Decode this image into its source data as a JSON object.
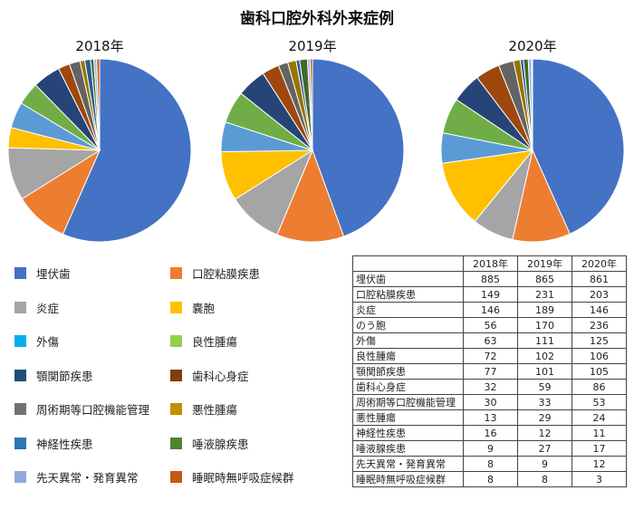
{
  "title": "歯科口腔外科外来症例",
  "colors": [
    "#4472C4",
    "#ED7D31",
    "#A5A5A5",
    "#FFC000",
    "#5B9BD5",
    "#70AD47",
    "#264478",
    "#9E480E",
    "#636363",
    "#997300",
    "#255E91",
    "#43682B",
    "#98B9E5",
    "#C55A11"
  ],
  "chart_data": {
    "type": "pie",
    "title": "歯科口腔外科外来症例",
    "categories": [
      "埋伏歯",
      "口腔粘膜疾患",
      "炎症",
      "のう胞",
      "外傷",
      "良性腫瘍",
      "顎関節疾患",
      "歯科心身症",
      "周術期等口腔機能管理",
      "悪性腫瘍",
      "神経性疾患",
      "唾液腺疾患",
      "先天異常・発育異常",
      "睡眠時無呼吸症候群"
    ],
    "series": [
      {
        "name": "2018年",
        "values": [
          885,
          149,
          146,
          56,
          63,
          72,
          77,
          32,
          30,
          13,
          16,
          9,
          8,
          8
        ]
      },
      {
        "name": "2019年",
        "values": [
          865,
          231,
          189,
          170,
          111,
          102,
          101,
          59,
          33,
          29,
          12,
          27,
          9,
          8
        ]
      },
      {
        "name": "2020年",
        "values": [
          861,
          203,
          146,
          236,
          125,
          106,
          105,
          86,
          53,
          24,
          11,
          17,
          12,
          3
        ]
      }
    ]
  },
  "pie_order": [
    0,
    1,
    2,
    3,
    5,
    4,
    6,
    7,
    8,
    9,
    10,
    11,
    12,
    13
  ],
  "legend": [
    {
      "label": "埋伏歯",
      "color": "#4472C4"
    },
    {
      "label": "口腔粘膜疾患",
      "color": "#ED7D31"
    },
    {
      "label": "炎症",
      "color": "#A5A5A5"
    },
    {
      "label": "嚢胞",
      "color": "#FFC000"
    },
    {
      "label": "外傷",
      "color": "#00B0F0"
    },
    {
      "label": "良性腫瘍",
      "color": "#92D050"
    },
    {
      "label": "顎関節疾患",
      "color": "#1F4E79"
    },
    {
      "label": "歯科心身症",
      "color": "#843C0C"
    },
    {
      "label": "周術期等口腔機能管理",
      "color": "#767171"
    },
    {
      "label": "悪性腫瘍",
      "color": "#BF9000"
    },
    {
      "label": "神経性疾患",
      "color": "#2E75B6"
    },
    {
      "label": "唾液腺疾患",
      "color": "#548235"
    },
    {
      "label": "先天異常・発育異常",
      "color": "#8FAADC"
    },
    {
      "label": "睡眠時無呼吸症候群",
      "color": "#C55A11"
    }
  ],
  "table": {
    "headers": [
      "",
      "2018年",
      "2019年",
      "2020年"
    ],
    "rows": [
      {
        "label": "埋伏歯",
        "values": [
          "885",
          "865",
          "861"
        ]
      },
      {
        "label": "口腔粘膜疾患",
        "values": [
          "149",
          "231",
          "203"
        ]
      },
      {
        "label": "炎症",
        "values": [
          "146",
          "189",
          "146"
        ]
      },
      {
        "label": "のう胞",
        "values": [
          "56",
          "170",
          "236"
        ]
      },
      {
        "label": "外傷",
        "values": [
          "63",
          "111",
          "125"
        ]
      },
      {
        "label": "良性腫瘍",
        "values": [
          "72",
          "102",
          "106"
        ]
      },
      {
        "label": "顎関節疾患",
        "values": [
          "77",
          "101",
          "105"
        ]
      },
      {
        "label": "歯科心身症",
        "values": [
          "32",
          "59",
          "86"
        ]
      },
      {
        "label": "周術期等口腔機能管理",
        "values": [
          "30",
          "33",
          "53"
        ]
      },
      {
        "label": "悪性腫瘍",
        "values": [
          "13",
          "29",
          "24"
        ]
      },
      {
        "label": "神経性疾患",
        "values": [
          "16",
          "12",
          "11"
        ]
      },
      {
        "label": "唾液腺疾患",
        "values": [
          "9",
          "27",
          "17"
        ]
      },
      {
        "label": "先天異常・発育異常",
        "values": [
          "8",
          "9",
          "12"
        ]
      },
      {
        "label": "睡眠時無呼吸症候群",
        "values": [
          "8",
          "8",
          "3"
        ]
      }
    ]
  }
}
